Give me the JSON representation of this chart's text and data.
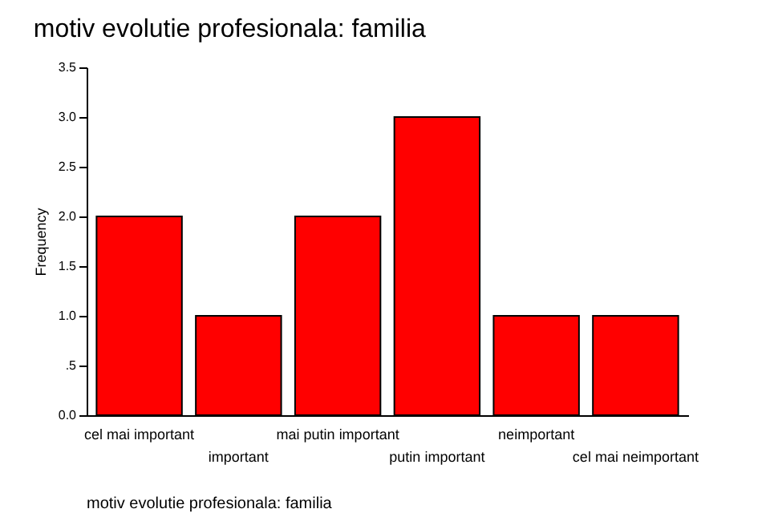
{
  "chart_data": {
    "type": "bar",
    "title": "motiv evolutie profesionala: familia",
    "xlabel": "motiv evolutie profesionala: familia",
    "ylabel": "Frequency",
    "categories": [
      "cel mai important",
      "important",
      "mai putin important",
      "putin important",
      "neimportant",
      "cel mai neimportant"
    ],
    "values": [
      2,
      1,
      2,
      3,
      1,
      1
    ],
    "color": "#ff0000",
    "ylim": [
      0,
      3.5
    ],
    "yticks": [
      {
        "value": 0,
        "label": "0.0"
      },
      {
        "value": 0.5,
        "label": ".5"
      },
      {
        "value": 1,
        "label": "1.0"
      },
      {
        "value": 1.5,
        "label": "1.5"
      },
      {
        "value": 2,
        "label": "2.0"
      },
      {
        "value": 2.5,
        "label": "2.5"
      },
      {
        "value": 3,
        "label": "3.0"
      },
      {
        "value": 3.5,
        "label": "3.5"
      }
    ],
    "grid": false
  }
}
